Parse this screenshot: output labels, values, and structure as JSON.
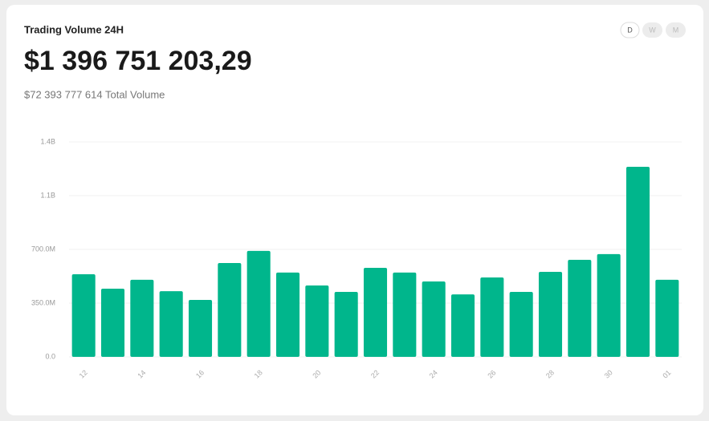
{
  "header": {
    "title": "Trading Volume 24H",
    "value": "$1 396 751 203,29",
    "total": "$72 393 777 614 Total Volume",
    "periods": [
      "D",
      "W",
      "M"
    ]
  },
  "chart_data": {
    "type": "bar",
    "categories": [
      "12",
      null,
      "14",
      null,
      "16",
      null,
      "18",
      null,
      "20",
      null,
      "22",
      null,
      "24",
      null,
      "26",
      null,
      "28",
      null,
      "30",
      null,
      "01"
    ],
    "values": [
      538000000,
      444000000,
      502000000,
      428000000,
      371000000,
      611000000,
      690000000,
      549000000,
      465000000,
      423000000,
      580000000,
      549000000,
      491000000,
      407000000,
      517000000,
      423000000,
      554000000,
      632000000,
      669000000,
      1238000000,
      502000000
    ],
    "color": "#00b68c",
    "ylim": [
      0,
      1400000000
    ],
    "yticks": [
      {
        "value": 0,
        "label": "0.0"
      },
      {
        "value": 350000000,
        "label": "350.0M"
      },
      {
        "value": 700000000,
        "label": "700.0M"
      },
      {
        "value": 1050000000,
        "label": "1.1B"
      },
      {
        "value": 1400000000,
        "label": "1.4B"
      }
    ],
    "grid": true
  }
}
